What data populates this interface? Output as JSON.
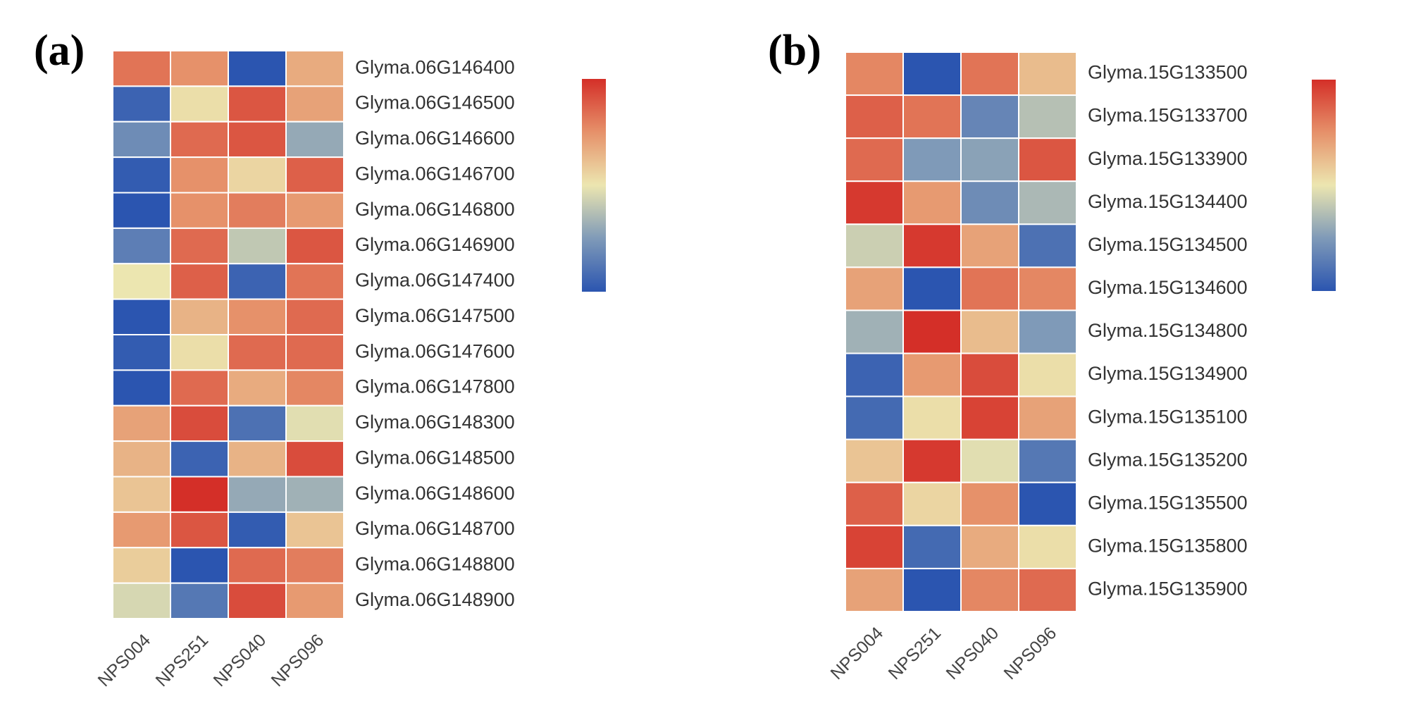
{
  "figure_panels": [
    "(a)",
    "(b)"
  ],
  "colors": {
    "scale_low": "#2b55b0",
    "scale_mid": "#ece6b0",
    "scale_high": "#d42f28",
    "cell_border": "#ffffff"
  },
  "chart_data": [
    {
      "type": "heatmap",
      "panel_label": "(a)",
      "columns": [
        "NPS004",
        "NPS251",
        "NPS040",
        "NPS096"
      ],
      "rows": [
        "Glyma.06G146400",
        "Glyma.06G146500",
        "Glyma.06G146600",
        "Glyma.06G146700",
        "Glyma.06G146800",
        "Glyma.06G146900",
        "Glyma.06G147400",
        "Glyma.06G147500",
        "Glyma.06G147600",
        "Glyma.06G147800",
        "Glyma.06G148300",
        "Glyma.06G148500",
        "Glyma.06G148600",
        "Glyma.06G148700",
        "Glyma.06G148800",
        "Glyma.06G148900"
      ],
      "value_range": [
        -1,
        1
      ],
      "values": [
        [
          0.65,
          0.5,
          -1.0,
          0.35
        ],
        [
          -0.9,
          0.05,
          0.8,
          0.4
        ],
        [
          -0.6,
          0.7,
          0.8,
          -0.4
        ],
        [
          -0.95,
          0.5,
          0.1,
          0.75
        ],
        [
          -1.0,
          0.5,
          0.6,
          0.45
        ],
        [
          -0.7,
          0.7,
          -0.2,
          0.8
        ],
        [
          0.0,
          0.75,
          -0.9,
          0.65
        ],
        [
          -1.0,
          0.3,
          0.5,
          0.7
        ],
        [
          -0.95,
          0.05,
          0.7,
          0.7
        ],
        [
          -1.0,
          0.7,
          0.35,
          0.55
        ],
        [
          0.4,
          0.85,
          -0.8,
          -0.05
        ],
        [
          0.3,
          -0.9,
          0.3,
          0.85
        ],
        [
          0.2,
          1.0,
          -0.4,
          -0.35
        ],
        [
          0.45,
          0.8,
          -0.95,
          0.2
        ],
        [
          0.15,
          -1.0,
          0.7,
          0.6
        ],
        [
          -0.1,
          -0.75,
          0.85,
          0.45
        ]
      ],
      "legend": {
        "type": "colorbar",
        "ticks": []
      }
    },
    {
      "type": "heatmap",
      "panel_label": "(b)",
      "columns": [
        "NPS004",
        "NPS251",
        "NPS040",
        "NPS096"
      ],
      "rows": [
        "Glyma.15G133500",
        "Glyma.15G133700",
        "Glyma.15G133900",
        "Glyma.15G134400",
        "Glyma.15G134500",
        "Glyma.15G134600",
        "Glyma.15G134800",
        "Glyma.15G134900",
        "Glyma.15G135100",
        "Glyma.15G135200",
        "Glyma.15G135500",
        "Glyma.15G135800",
        "Glyma.15G135900"
      ],
      "value_range": [
        -1,
        1
      ],
      "values": [
        [
          0.55,
          -1.0,
          0.65,
          0.25
        ],
        [
          0.75,
          0.65,
          -0.65,
          -0.25
        ],
        [
          0.7,
          -0.5,
          -0.45,
          0.8
        ],
        [
          0.95,
          0.45,
          -0.6,
          -0.3
        ],
        [
          -0.15,
          0.95,
          0.4,
          -0.8
        ],
        [
          0.4,
          -1.0,
          0.65,
          0.55
        ],
        [
          -0.35,
          1.0,
          0.25,
          -0.5
        ],
        [
          -0.9,
          0.45,
          0.85,
          0.05
        ],
        [
          -0.85,
          0.05,
          0.9,
          0.4
        ],
        [
          0.2,
          0.95,
          -0.05,
          -0.75
        ],
        [
          0.75,
          0.1,
          0.5,
          -1.0
        ],
        [
          0.9,
          -0.85,
          0.35,
          0.05
        ],
        [
          0.4,
          -1.0,
          0.55,
          0.7
        ]
      ],
      "legend": {
        "type": "colorbar",
        "ticks": []
      }
    }
  ]
}
